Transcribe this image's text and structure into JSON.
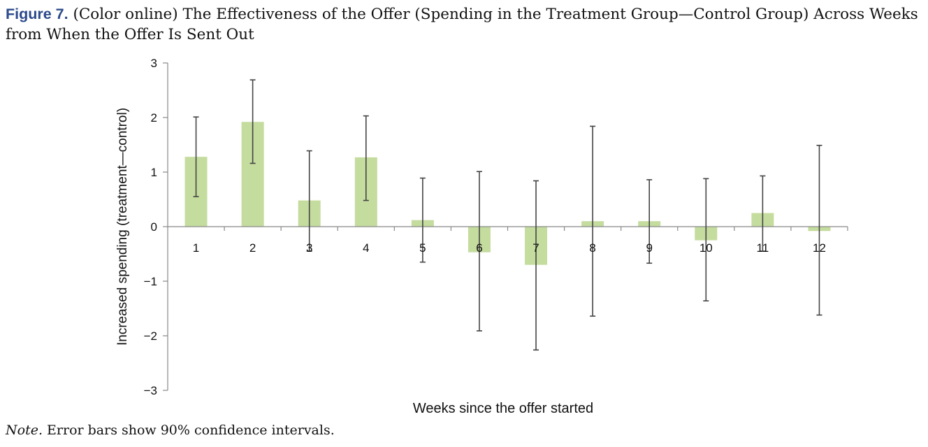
{
  "caption": {
    "label": "Figure 7.",
    "text": "(Color online) The Effectiveness of the Offer (Spending in the Treatment Group—Control Group) Across Weeks from When the Offer Is Sent Out"
  },
  "note": {
    "label": "Note.",
    "text": "Error bars show 90% confidence intervals."
  },
  "chart_data": {
    "type": "bar",
    "xlabel": "Weeks since the offer started",
    "ylabel": "Increased spending (treatment—control)",
    "ylim": [
      -3,
      3
    ],
    "yticks": [
      3,
      2,
      1,
      0,
      -1,
      -2,
      -3
    ],
    "ytick_labels": [
      "3",
      "2",
      "1",
      "0",
      "−1",
      "−2",
      "−3"
    ],
    "categories": [
      "1",
      "2",
      "3",
      "4",
      "5",
      "6",
      "7",
      "8",
      "9",
      "10",
      "11",
      "12"
    ],
    "values": [
      1.28,
      1.92,
      0.48,
      1.27,
      0.12,
      -0.47,
      -0.7,
      0.1,
      0.1,
      -0.25,
      0.25,
      -0.08
    ],
    "error_low": [
      0.55,
      1.16,
      -0.45,
      0.48,
      -0.65,
      -1.91,
      -2.26,
      -1.64,
      -0.67,
      -1.36,
      -0.45,
      -1.62
    ],
    "error_high": [
      2.01,
      2.69,
      1.39,
      2.03,
      0.89,
      1.01,
      0.84,
      1.84,
      0.86,
      0.88,
      0.93,
      1.49
    ],
    "bar_color": "#c5dc9f",
    "error_bar_color": "#444444",
    "axis_color": "#888888",
    "grid": false,
    "legend": "none"
  }
}
